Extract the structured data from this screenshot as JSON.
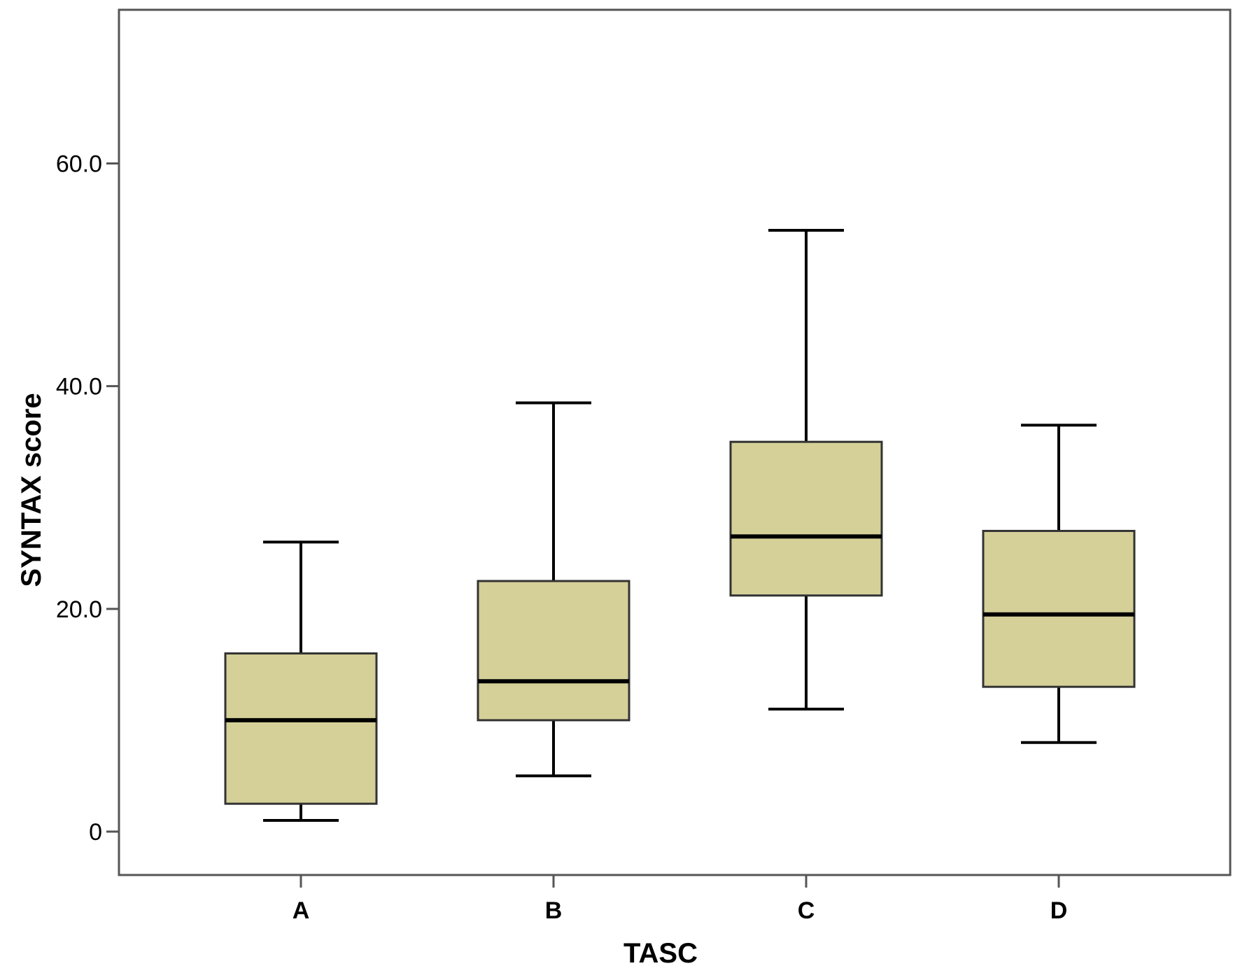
{
  "chart_data": {
    "type": "box",
    "title": "",
    "xlabel": "TASC",
    "ylabel": "SYNTAX score",
    "categories": [
      "A",
      "B",
      "C",
      "D"
    ],
    "yticks": [
      0,
      20,
      40,
      60
    ],
    "ytick_labels": [
      "0",
      "20.0",
      "40.0",
      "60.0"
    ],
    "ylim": [
      -3.9,
      73.8
    ],
    "grid": false,
    "legend": "none",
    "boxes": [
      {
        "category": "A",
        "min": 1.0,
        "q1": 2.5,
        "median": 10.0,
        "q3": 16.0,
        "max": 26.0
      },
      {
        "category": "B",
        "min": 5.0,
        "q1": 10.0,
        "median": 13.5,
        "q3": 22.5,
        "max": 38.5
      },
      {
        "category": "C",
        "min": 11.0,
        "q1": 21.2,
        "median": 26.5,
        "q3": 35.0,
        "max": 54.0
      },
      {
        "category": "D",
        "min": 8.0,
        "q1": 13.0,
        "median": 19.5,
        "q3": 27.0,
        "max": 36.5
      }
    ],
    "colors": {
      "box_fill": "#d5d098",
      "box_stroke": "#333333",
      "line": "#000000",
      "frame": "#555555"
    }
  }
}
